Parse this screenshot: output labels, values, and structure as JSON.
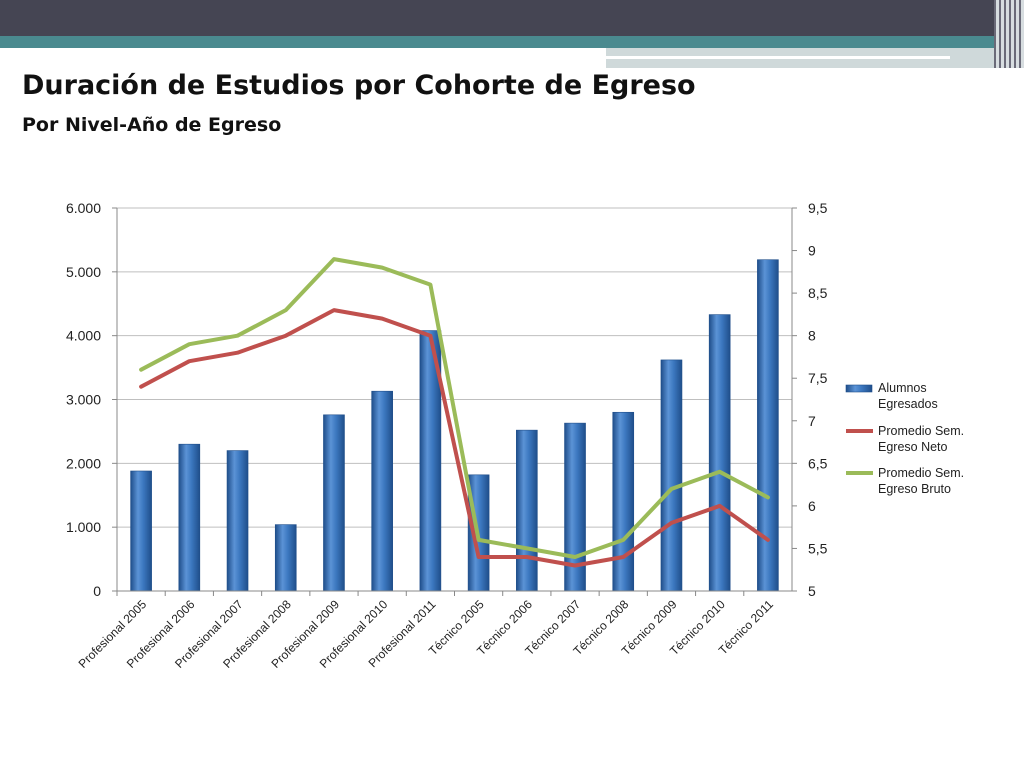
{
  "slide": {
    "title": "Duración de Estudios por Cohorte de Egreso",
    "subtitle": "Por Nivel-Año de Egreso"
  },
  "colors": {
    "header_dark": "#454553",
    "header_teal": "#4a8a8f",
    "bar": "#3c78c0",
    "bar_dark": "#1f4e8a",
    "neto": "#c0504d",
    "bruto": "#9bbb59",
    "grid": "#bfbfbf"
  },
  "chart_data": {
    "type": "bar",
    "categories": [
      "Profesional 2005",
      "Profesional 2006",
      "Profesional 2007",
      "Profesional 2008",
      "Profesional 2009",
      "Profesional 2010",
      "Profesional 2011",
      "Técnico 2005",
      "Técnico 2006",
      "Técnico 2007",
      "Técnico 2008",
      "Técnico 2009",
      "Técnico 2010",
      "Técnico 2011"
    ],
    "series": [
      {
        "name": "Alumnos Egresados",
        "type": "bar",
        "axis": "left",
        "values": [
          1880,
          2300,
          2200,
          1040,
          2760,
          3130,
          4080,
          1820,
          2520,
          2630,
          2800,
          3620,
          4330,
          5190
        ]
      },
      {
        "name": "Promedio Sem. Egreso Neto",
        "type": "line",
        "axis": "right",
        "values": [
          7.4,
          7.7,
          7.8,
          8.0,
          8.3,
          8.2,
          8.0,
          5.4,
          5.4,
          5.3,
          5.4,
          5.8,
          6.0,
          5.6
        ]
      },
      {
        "name": "Promedio Sem. Egreso Bruto",
        "type": "line",
        "axis": "right",
        "values": [
          7.6,
          7.9,
          8.0,
          8.3,
          8.9,
          8.8,
          8.6,
          5.6,
          5.5,
          5.4,
          5.6,
          6.2,
          6.4,
          6.1
        ]
      }
    ],
    "y_left": {
      "lim": [
        0,
        6000
      ],
      "ticks": [
        0,
        1000,
        2000,
        3000,
        4000,
        5000,
        6000
      ],
      "tick_labels": [
        "0",
        "1.000",
        "2.000",
        "3.000",
        "4.000",
        "5.000",
        "6.000"
      ]
    },
    "y_right": {
      "lim": [
        5,
        9.5
      ],
      "ticks": [
        5,
        5.5,
        6,
        6.5,
        7,
        7.5,
        8,
        8.5,
        9,
        9.5
      ],
      "tick_labels": [
        "5",
        "5,5",
        "6",
        "6,5",
        "7",
        "7,5",
        "8",
        "8,5",
        "9",
        "9,5"
      ]
    },
    "legend": {
      "position": "right",
      "entries": [
        {
          "lines": [
            "Alumnos",
            "Egresados"
          ]
        },
        {
          "lines": [
            "Promedio Sem.",
            "Egreso Neto"
          ]
        },
        {
          "lines": [
            "Promedio Sem.",
            "Egreso Bruto"
          ]
        }
      ]
    },
    "grid": true
  }
}
